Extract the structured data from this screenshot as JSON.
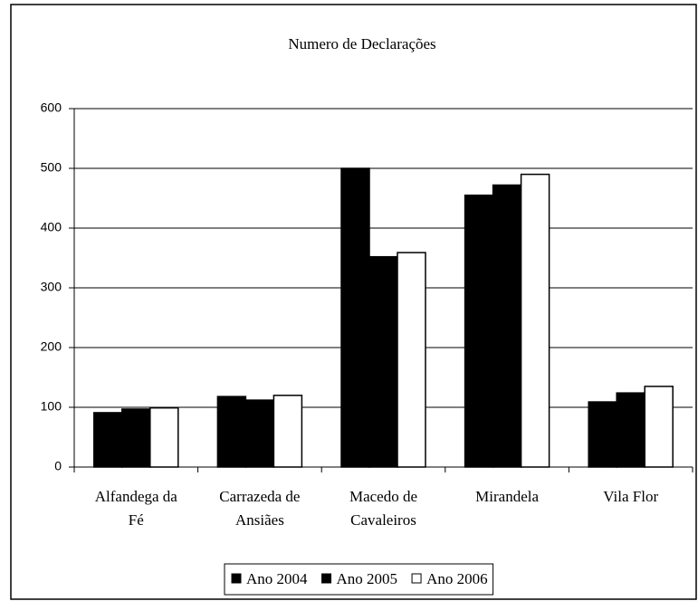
{
  "chart_data": {
    "type": "bar",
    "title": "Numero de Declarações",
    "categories": [
      [
        "Alfandega da",
        "Fé"
      ],
      [
        "Carrazeda de",
        "Ansiães"
      ],
      [
        "Macedo de",
        "Cavaleiros"
      ],
      [
        "Mirandela"
      ],
      [
        "Vila Flor"
      ]
    ],
    "series": [
      {
        "name": "Ano 2004",
        "color": "#000000",
        "values": [
          91,
          118,
          500,
          455,
          109
        ]
      },
      {
        "name": "Ano 2005",
        "color": "#000000",
        "values": [
          97,
          112,
          352,
          472,
          124
        ]
      },
      {
        "name": "Ano 2006",
        "color": "#ffffff",
        "values": [
          99,
          120,
          359,
          490,
          135
        ]
      }
    ],
    "ylim": [
      0,
      600
    ],
    "yticks": [
      0,
      100,
      200,
      300,
      400,
      500,
      600
    ],
    "grid": true,
    "legend": "bottom"
  }
}
